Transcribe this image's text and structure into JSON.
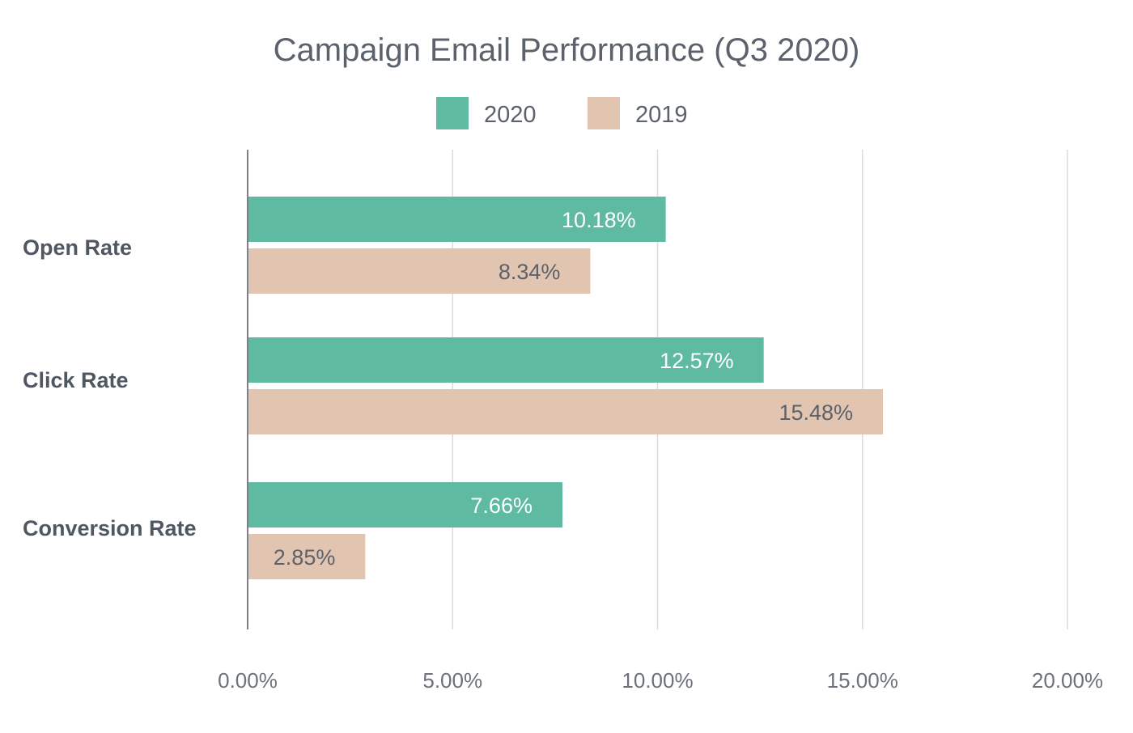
{
  "chart_data": {
    "type": "bar",
    "orientation": "horizontal",
    "title": "Campaign Email Performance (Q3 2020)",
    "categories": [
      "Open Rate",
      "Click Rate",
      "Conversion Rate"
    ],
    "series": [
      {
        "name": "2020",
        "color": "#5ebba2",
        "values": [
          10.18,
          12.57,
          7.66
        ],
        "labels": [
          "10.18%",
          "12.57%",
          "7.66%"
        ]
      },
      {
        "name": "2019",
        "color": "#e2c5b0",
        "values": [
          8.34,
          15.48,
          2.85
        ],
        "labels": [
          "8.34%",
          "15.48%",
          "2.85%"
        ]
      }
    ],
    "xlim": [
      0,
      20
    ],
    "xticks": [
      0,
      5,
      10,
      15,
      20
    ],
    "xtick_labels": [
      "0.00%",
      "5.00%",
      "10.00%",
      "15.00%",
      "20.00%"
    ],
    "xlabel": "",
    "ylabel": "",
    "grid": true,
    "legend": "top-center"
  }
}
